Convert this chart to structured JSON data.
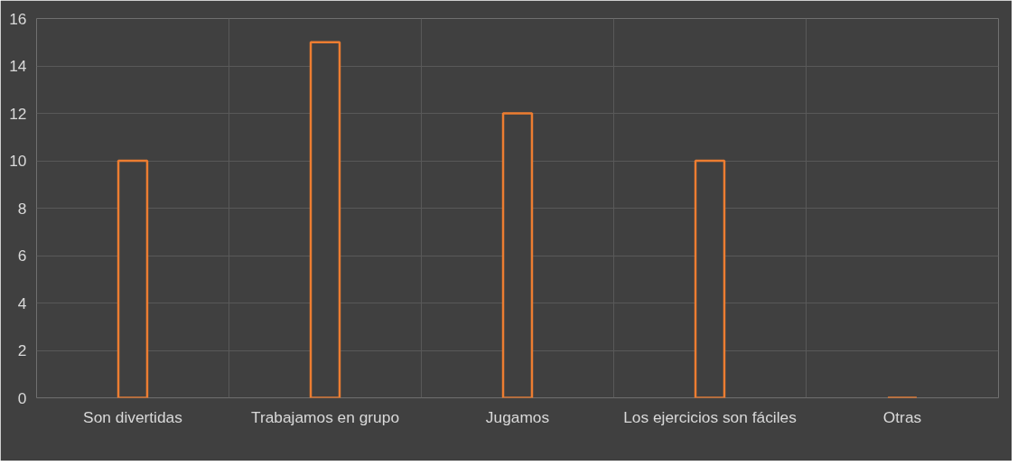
{
  "chart_data": {
    "type": "bar",
    "categories": [
      "Son divertidas",
      "Trabajamos en grupo",
      "Jugamos",
      "Los ejercicios son fáciles",
      "Otras"
    ],
    "values": [
      10,
      15,
      12,
      10,
      0
    ],
    "color": "#ed7d31",
    "ylim": [
      0,
      16
    ],
    "yticks": [
      0,
      2,
      4,
      6,
      8,
      10,
      12,
      14,
      16
    ],
    "grid": true
  }
}
